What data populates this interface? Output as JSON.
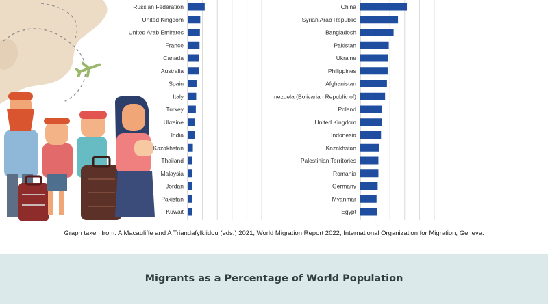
{
  "chart_data": [
    {
      "type": "bar",
      "orientation": "horizontal",
      "title": "",
      "xlabel": "",
      "ylabel": "",
      "categories": [
        "Russian Federation",
        "United Kingdom",
        "United Arab Emirates",
        "France",
        "Canada",
        "Australia",
        "Spain",
        "Italy",
        "Turkey",
        "Ukraine",
        "India",
        "Kazakhstan",
        "Thailand",
        "Malaysia",
        "Jordan",
        "Pakistan",
        "Kuwait"
      ],
      "values": [
        2.3,
        1.7,
        1.65,
        1.6,
        1.55,
        1.5,
        1.2,
        1.15,
        1.1,
        1.0,
        0.95,
        0.7,
        0.65,
        0.65,
        0.65,
        0.6,
        0.6
      ],
      "xlim": [
        0,
        10
      ],
      "grid": true,
      "bar_color": "#1f4ea1"
    },
    {
      "type": "bar",
      "orientation": "horizontal",
      "title": "",
      "xlabel": "",
      "ylabel": "",
      "categories": [
        "China",
        "Syrian Arab Republic",
        "Bangladesh",
        "Pakistan",
        "Ukraine",
        "Philippines",
        "Afghanistan",
        "Venezuela (Bolivarian Republic of)",
        "Poland",
        "United Kingdom",
        "Indonesia",
        "Kazakhstan",
        "Palestinian Territories",
        "Romania",
        "Germany",
        "Myanmar",
        "Egypt"
      ],
      "values": [
        6.3,
        5.1,
        4.5,
        3.85,
        3.75,
        3.7,
        3.6,
        3.35,
        2.95,
        2.9,
        2.8,
        2.55,
        2.45,
        2.45,
        2.35,
        2.2,
        2.25
      ],
      "xlim": [
        0,
        10
      ],
      "grid": true,
      "bar_color": "#1f4ea1"
    }
  ],
  "source_note": "Graph taken from: A Macauliffe and A Triandafylklidou (eds.) 2021, World Migration Report 2022, International Organization for Migration, Geneva.",
  "section_title": "Migrants as a Percentage of World Population",
  "colors": {
    "bar": "#1f4ea1",
    "band": "#dbe9ea",
    "grid": "#d9d9d9"
  }
}
